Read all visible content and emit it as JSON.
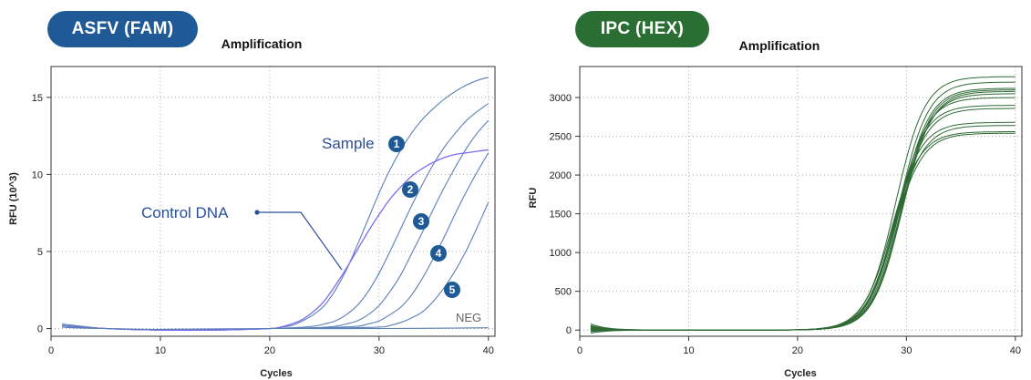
{
  "badges": {
    "left": {
      "label": "ASFV (FAM)",
      "color": "#1f5a96"
    },
    "right": {
      "label": "IPC (HEX)",
      "color": "#2a6e34"
    }
  },
  "chart_data": [
    {
      "type": "line",
      "title": "Amplification",
      "xlabel": "Cycles",
      "ylabel": "RFU (10^3)",
      "xlim": [
        0,
        40.6
      ],
      "ylim": [
        -0.5,
        17
      ],
      "xticks": [
        0,
        10,
        20,
        30,
        40
      ],
      "yticks": [
        0,
        5,
        10,
        15
      ],
      "grid": true,
      "series": [
        {
          "id": "s1",
          "color": "#5b7fb8",
          "x": [
            1,
            5,
            10,
            15,
            20,
            21,
            22,
            23,
            24,
            25,
            26,
            27,
            28,
            29,
            30,
            31,
            32,
            33,
            34,
            35,
            36,
            37,
            38,
            39,
            40
          ],
          "y": [
            0.3,
            0,
            -0.1,
            -0.1,
            0,
            0.1,
            0.2,
            0.5,
            0.9,
            1.5,
            2.5,
            3.8,
            5.4,
            7.1,
            8.8,
            10.3,
            11.6,
            12.7,
            13.6,
            14.3,
            14.9,
            15.4,
            15.8,
            16.1,
            16.3
          ]
        },
        {
          "id": "s2",
          "color": "#5b7fb8",
          "x": [
            1,
            5,
            10,
            15,
            20,
            22,
            24,
            25,
            26,
            27,
            28,
            29,
            30,
            31,
            32,
            33,
            34,
            35,
            36,
            37,
            38,
            39,
            40
          ],
          "y": [
            0.2,
            0,
            -0.1,
            -0.1,
            0,
            0.05,
            0.15,
            0.3,
            0.5,
            0.9,
            1.5,
            2.4,
            3.6,
            5.0,
            6.5,
            8.0,
            9.4,
            10.7,
            11.8,
            12.7,
            13.5,
            14.1,
            14.6
          ]
        },
        {
          "id": "s3",
          "color": "#5b7fb8",
          "x": [
            1,
            5,
            10,
            15,
            20,
            24,
            26,
            27,
            28,
            29,
            30,
            31,
            32,
            33,
            34,
            35,
            36,
            37,
            38,
            39,
            40
          ],
          "y": [
            0.2,
            0,
            -0.1,
            -0.1,
            0,
            0.05,
            0.15,
            0.3,
            0.5,
            0.9,
            1.5,
            2.4,
            3.5,
            4.9,
            6.3,
            7.8,
            9.2,
            10.5,
            11.7,
            12.7,
            13.5
          ]
        },
        {
          "id": "s4",
          "color": "#5b7fb8",
          "x": [
            1,
            5,
            10,
            15,
            20,
            25,
            28,
            29,
            30,
            31,
            32,
            33,
            34,
            35,
            36,
            37,
            38,
            39,
            40
          ],
          "y": [
            0.2,
            0,
            -0.1,
            -0.1,
            0,
            0.05,
            0.15,
            0.3,
            0.5,
            0.9,
            1.4,
            2.2,
            3.3,
            4.6,
            6.0,
            7.5,
            8.9,
            10.2,
            11.4
          ]
        },
        {
          "id": "s5",
          "color": "#5b7fb8",
          "x": [
            1,
            5,
            10,
            15,
            20,
            25,
            30,
            31,
            32,
            33,
            34,
            35,
            36,
            37,
            38,
            39,
            40
          ],
          "y": [
            0.2,
            0,
            -0.1,
            -0.1,
            0,
            0.02,
            0.1,
            0.2,
            0.4,
            0.7,
            1.1,
            1.8,
            2.7,
            3.8,
            5.1,
            6.6,
            8.2
          ]
        },
        {
          "id": "ctrl",
          "color": "#7c6cf0",
          "x": [
            1,
            5,
            10,
            15,
            20,
            21,
            22,
            23,
            24,
            25,
            26,
            27,
            28,
            29,
            30,
            31,
            32,
            33,
            34,
            35,
            36,
            37,
            38,
            39,
            40
          ],
          "y": [
            0.1,
            0,
            -0.1,
            -0.1,
            0,
            0.1,
            0.3,
            0.6,
            1.1,
            1.8,
            2.8,
            3.9,
            5.1,
            6.3,
            7.4,
            8.4,
            9.2,
            9.9,
            10.4,
            10.8,
            11.1,
            11.3,
            11.4,
            11.5,
            11.6
          ]
        },
        {
          "id": "neg",
          "color": "#5b7fb8",
          "x": [
            1,
            2,
            5,
            10,
            20,
            30,
            40
          ],
          "y": [
            0.1,
            0.05,
            0,
            -0.05,
            0,
            0,
            0.05
          ]
        }
      ],
      "annotations": {
        "sample": "Sample",
        "control": "Control DNA",
        "neg": "NEG",
        "markers": [
          "1",
          "2",
          "3",
          "4",
          "5"
        ],
        "marker_color": "#1f5a96"
      }
    },
    {
      "type": "line",
      "title": "Amplification",
      "xlabel": "Cycles",
      "ylabel": "RFU",
      "xlim": [
        0,
        40.6
      ],
      "ylim": [
        -80,
        3400
      ],
      "xticks": [
        0,
        10,
        20,
        30,
        40
      ],
      "yticks": [
        0,
        500,
        1000,
        1500,
        2000,
        2500,
        3000
      ],
      "grid": true,
      "color": "#2f6a35",
      "plateaus": [
        3270,
        3200,
        3120,
        3100,
        3080,
        3050,
        3000,
        2900,
        2860,
        2680,
        2640,
        2560,
        2540
      ],
      "midpoints": [
        29.0,
        29.3,
        29.4,
        29.5,
        29.6,
        29.5,
        29.2,
        29.0,
        29.1,
        28.7,
        28.9,
        28.6,
        28.8
      ],
      "start_values": [
        80,
        60,
        20,
        -20,
        40,
        0,
        30,
        -40,
        10,
        50,
        -10,
        20,
        0
      ]
    }
  ]
}
